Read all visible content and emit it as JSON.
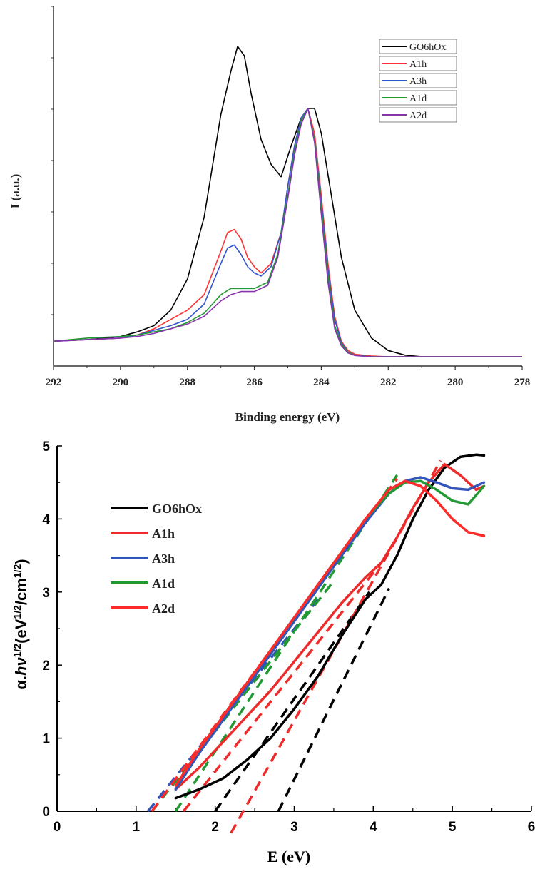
{
  "chart_data": [
    {
      "type": "line",
      "xlabel": "Binding energy (eV)",
      "ylabel": "I (a.u.)",
      "xlim": [
        292,
        278
      ],
      "ylim": [
        0,
        1.0
      ],
      "x_reversed": true,
      "xticks": [
        "292",
        "290",
        "288",
        "286",
        "284",
        "282",
        "280",
        "278"
      ],
      "legend_position": "top-right",
      "series": [
        {
          "name": "GO6hOx",
          "color": "#000000",
          "x": [
            292,
            291,
            290,
            289.5,
            289,
            288.5,
            288,
            287.5,
            287,
            286.7,
            286.5,
            286.3,
            286.1,
            285.8,
            285.5,
            285.2,
            284.9,
            284.6,
            284.4,
            284.2,
            284.0,
            283.7,
            283.4,
            283.0,
            282.5,
            282.0,
            281.5,
            281,
            280,
            279,
            278
          ],
          "y": [
            0.05,
            0.055,
            0.065,
            0.08,
            0.1,
            0.15,
            0.25,
            0.45,
            0.78,
            0.92,
            1.0,
            0.97,
            0.85,
            0.7,
            0.62,
            0.58,
            0.68,
            0.77,
            0.8,
            0.8,
            0.72,
            0.52,
            0.32,
            0.15,
            0.06,
            0.02,
            0.005,
            0,
            0,
            0,
            0
          ]
        },
        {
          "name": "A1h",
          "color": "#ff3333",
          "x": [
            292,
            291,
            290,
            289.5,
            289,
            288.5,
            288,
            287.5,
            287,
            286.8,
            286.6,
            286.4,
            286.2,
            286.0,
            285.8,
            285.5,
            285.2,
            285.0,
            284.8,
            284.6,
            284.4,
            284.2,
            284.0,
            283.8,
            283.6,
            283.4,
            283.2,
            283.0,
            282.5,
            282,
            281,
            280,
            279,
            278
          ],
          "y": [
            0.05,
            0.055,
            0.06,
            0.07,
            0.09,
            0.12,
            0.15,
            0.2,
            0.34,
            0.4,
            0.41,
            0.38,
            0.32,
            0.29,
            0.27,
            0.3,
            0.4,
            0.55,
            0.68,
            0.77,
            0.8,
            0.72,
            0.52,
            0.3,
            0.13,
            0.05,
            0.02,
            0.008,
            0.002,
            0,
            0,
            0,
            0,
            0
          ]
        },
        {
          "name": "A3h",
          "color": "#3355cc",
          "x": [
            292,
            291,
            290,
            289.5,
            289,
            288.5,
            288,
            287.5,
            287,
            286.8,
            286.6,
            286.4,
            286.2,
            286.0,
            285.8,
            285.5,
            285.2,
            285.0,
            284.8,
            284.6,
            284.4,
            284.2,
            284.0,
            283.8,
            283.6,
            283.4,
            283.2,
            283.0,
            282.5,
            282,
            281,
            280,
            279,
            278
          ],
          "y": [
            0.05,
            0.055,
            0.06,
            0.07,
            0.085,
            0.1,
            0.12,
            0.17,
            0.3,
            0.35,
            0.36,
            0.33,
            0.29,
            0.27,
            0.26,
            0.29,
            0.4,
            0.55,
            0.68,
            0.77,
            0.8,
            0.7,
            0.5,
            0.28,
            0.12,
            0.045,
            0.015,
            0.005,
            0,
            0,
            0,
            0,
            0,
            0
          ]
        },
        {
          "name": "A1d",
          "color": "#229933",
          "x": [
            292,
            291,
            290,
            289.5,
            289,
            288.5,
            288,
            287.5,
            287,
            286.7,
            286.4,
            286.0,
            285.6,
            285.3,
            285.0,
            284.8,
            284.6,
            284.4,
            284.2,
            284.0,
            283.8,
            283.6,
            283.4,
            283.2,
            283.0,
            282.5,
            282,
            281,
            280,
            279,
            278
          ],
          "y": [
            0.05,
            0.06,
            0.065,
            0.07,
            0.08,
            0.09,
            0.11,
            0.14,
            0.2,
            0.22,
            0.22,
            0.22,
            0.24,
            0.33,
            0.52,
            0.66,
            0.76,
            0.8,
            0.7,
            0.48,
            0.26,
            0.1,
            0.04,
            0.015,
            0.005,
            0,
            0,
            0,
            0,
            0,
            0
          ]
        },
        {
          "name": "A2d",
          "color": "#8833aa",
          "x": [
            292,
            291,
            290,
            289.5,
            289,
            288.5,
            288,
            287.5,
            287,
            286.7,
            286.4,
            286.0,
            285.6,
            285.3,
            285.0,
            284.8,
            284.6,
            284.4,
            284.2,
            284.0,
            283.8,
            283.6,
            283.4,
            283.2,
            283.0,
            282.5,
            282,
            281,
            280,
            279,
            278
          ],
          "y": [
            0.05,
            0.055,
            0.06,
            0.065,
            0.075,
            0.09,
            0.105,
            0.13,
            0.18,
            0.2,
            0.21,
            0.21,
            0.23,
            0.32,
            0.51,
            0.65,
            0.75,
            0.8,
            0.69,
            0.46,
            0.24,
            0.09,
            0.035,
            0.012,
            0.004,
            0,
            0,
            0,
            0,
            0,
            0
          ]
        }
      ]
    },
    {
      "type": "line",
      "xlabel": "E (eV)",
      "ylabel": "α.hν^1/2(eV^1/2/cm^1/2)",
      "xlim": [
        0,
        6
      ],
      "ylim": [
        0,
        5
      ],
      "xticks": [
        "0",
        "1",
        "2",
        "3",
        "4",
        "5",
        "6"
      ],
      "yticks": [
        "0",
        "1",
        "2",
        "3",
        "4",
        "5"
      ],
      "legend_position": "upper-left",
      "series": [
        {
          "name": "GO6hOx",
          "color": "#000000",
          "x": [
            1.5,
            1.8,
            2.1,
            2.4,
            2.7,
            3.0,
            3.3,
            3.6,
            3.9,
            4.1,
            4.3,
            4.5,
            4.7,
            4.9,
            5.1,
            5.3,
            5.4
          ],
          "y": [
            0.18,
            0.3,
            0.45,
            0.7,
            1.0,
            1.4,
            1.85,
            2.4,
            2.9,
            3.1,
            3.5,
            4.0,
            4.4,
            4.7,
            4.85,
            4.88,
            4.87
          ]
        },
        {
          "name": "A1h",
          "color": "#ee2b2b",
          "x": [
            1.5,
            1.8,
            2.1,
            2.4,
            2.7,
            3.0,
            3.3,
            3.6,
            3.9,
            4.1,
            4.3,
            4.5,
            4.7,
            4.9,
            5.1,
            5.3,
            5.4
          ],
          "y": [
            0.3,
            0.6,
            0.95,
            1.3,
            1.65,
            2.05,
            2.45,
            2.85,
            3.2,
            3.4,
            3.75,
            4.15,
            4.5,
            4.75,
            4.6,
            4.4,
            4.45
          ]
        },
        {
          "name": "A3h",
          "color": "#3355bb",
          "x": [
            1.5,
            1.8,
            2.1,
            2.4,
            2.7,
            3.0,
            3.3,
            3.6,
            3.9,
            4.2,
            4.4,
            4.6,
            4.8,
            5.0,
            5.2,
            5.4
          ],
          "y": [
            0.3,
            0.8,
            1.25,
            1.7,
            2.15,
            2.6,
            3.05,
            3.5,
            3.95,
            4.35,
            4.52,
            4.57,
            4.5,
            4.42,
            4.4,
            4.5
          ]
        },
        {
          "name": "A1d",
          "color": "#229933",
          "x": [
            1.5,
            1.8,
            2.1,
            2.4,
            2.7,
            3.0,
            3.3,
            3.6,
            3.9,
            4.2,
            4.4,
            4.6,
            4.8,
            5.0,
            5.2,
            5.4
          ],
          "y": [
            0.35,
            0.85,
            1.3,
            1.75,
            2.2,
            2.65,
            3.1,
            3.55,
            4.0,
            4.35,
            4.5,
            4.52,
            4.4,
            4.25,
            4.2,
            4.45
          ]
        },
        {
          "name": "A2d",
          "color": "#ff2a2a",
          "x": [
            1.5,
            1.8,
            2.1,
            2.4,
            2.7,
            3.0,
            3.3,
            3.6,
            3.9,
            4.2,
            4.4,
            4.6,
            4.8,
            5.0,
            5.2,
            5.4
          ],
          "y": [
            0.35,
            0.85,
            1.3,
            1.75,
            2.2,
            2.65,
            3.1,
            3.55,
            4.0,
            4.4,
            4.52,
            4.45,
            4.25,
            4.0,
            3.82,
            3.77
          ]
        }
      ],
      "tangent_lines": [
        {
          "color": "#000000",
          "x": [
            2.8,
            4.2
          ],
          "y": [
            0,
            3.05
          ]
        },
        {
          "color": "#000000",
          "x": [
            2.0,
            3.95
          ],
          "y": [
            0,
            3.0
          ]
        },
        {
          "color": "#ee2b2b",
          "x": [
            2.2,
            4.85
          ],
          "y": [
            -0.3,
            4.8
          ]
        },
        {
          "color": "#ee2b2b",
          "x": [
            1.6,
            4.1
          ],
          "y": [
            0,
            3.4
          ]
        },
        {
          "color": "#3355bb",
          "x": [
            1.15,
            3.3
          ],
          "y": [
            0,
            2.9
          ]
        },
        {
          "color": "#229933",
          "x": [
            1.5,
            4.3
          ],
          "y": [
            0,
            4.6
          ]
        },
        {
          "color": "#229933",
          "x": [
            1.2,
            3.5
          ],
          "y": [
            0,
            3.15
          ]
        },
        {
          "color": "#ff2a2a",
          "x": [
            1.2,
            4.3
          ],
          "y": [
            0,
            4.55
          ]
        }
      ]
    }
  ]
}
